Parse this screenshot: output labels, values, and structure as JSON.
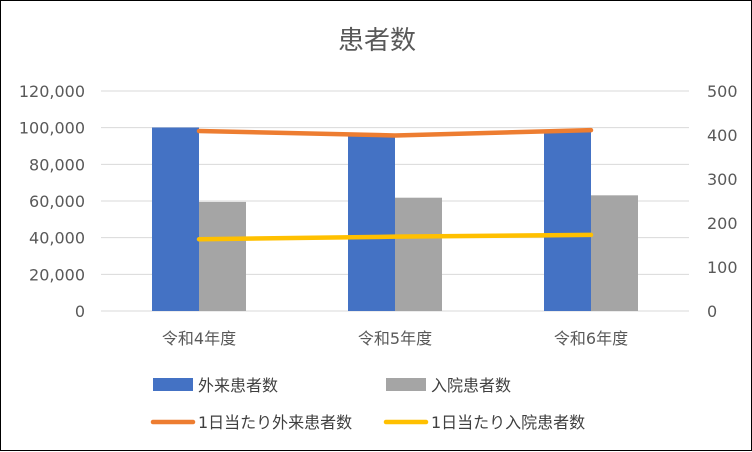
{
  "chart_data": {
    "type": "bar",
    "title": "患者数",
    "categories": [
      "令和4年度",
      "令和5年度",
      "令和6年度"
    ],
    "y_left": {
      "min": 0,
      "max": 120000,
      "ticks": [
        "0",
        "20,000",
        "40,000",
        "60,000",
        "80,000",
        "100,000",
        "120,000"
      ]
    },
    "y_right": {
      "min": 0,
      "max": 500,
      "ticks": [
        "0",
        "100",
        "200",
        "300",
        "400",
        "500"
      ]
    },
    "grid": true,
    "legend_position": "bottom",
    "series": [
      {
        "name": "外来患者数",
        "type": "bar",
        "axis": "left",
        "color": "#4472C4",
        "values": [
          100100,
          95300,
          98200
        ]
      },
      {
        "name": "入院患者数",
        "type": "bar",
        "axis": "left",
        "color": "#A5A5A5",
        "values": [
          59500,
          61800,
          63100
        ]
      },
      {
        "name": "1日当たり外来患者数",
        "type": "line",
        "axis": "right",
        "color": "#ED7D31",
        "values": [
          409,
          399,
          411
        ]
      },
      {
        "name": "1日当たり入院患者数",
        "type": "line",
        "axis": "right",
        "color": "#FFC000",
        "values": [
          163,
          169,
          173
        ]
      }
    ]
  }
}
